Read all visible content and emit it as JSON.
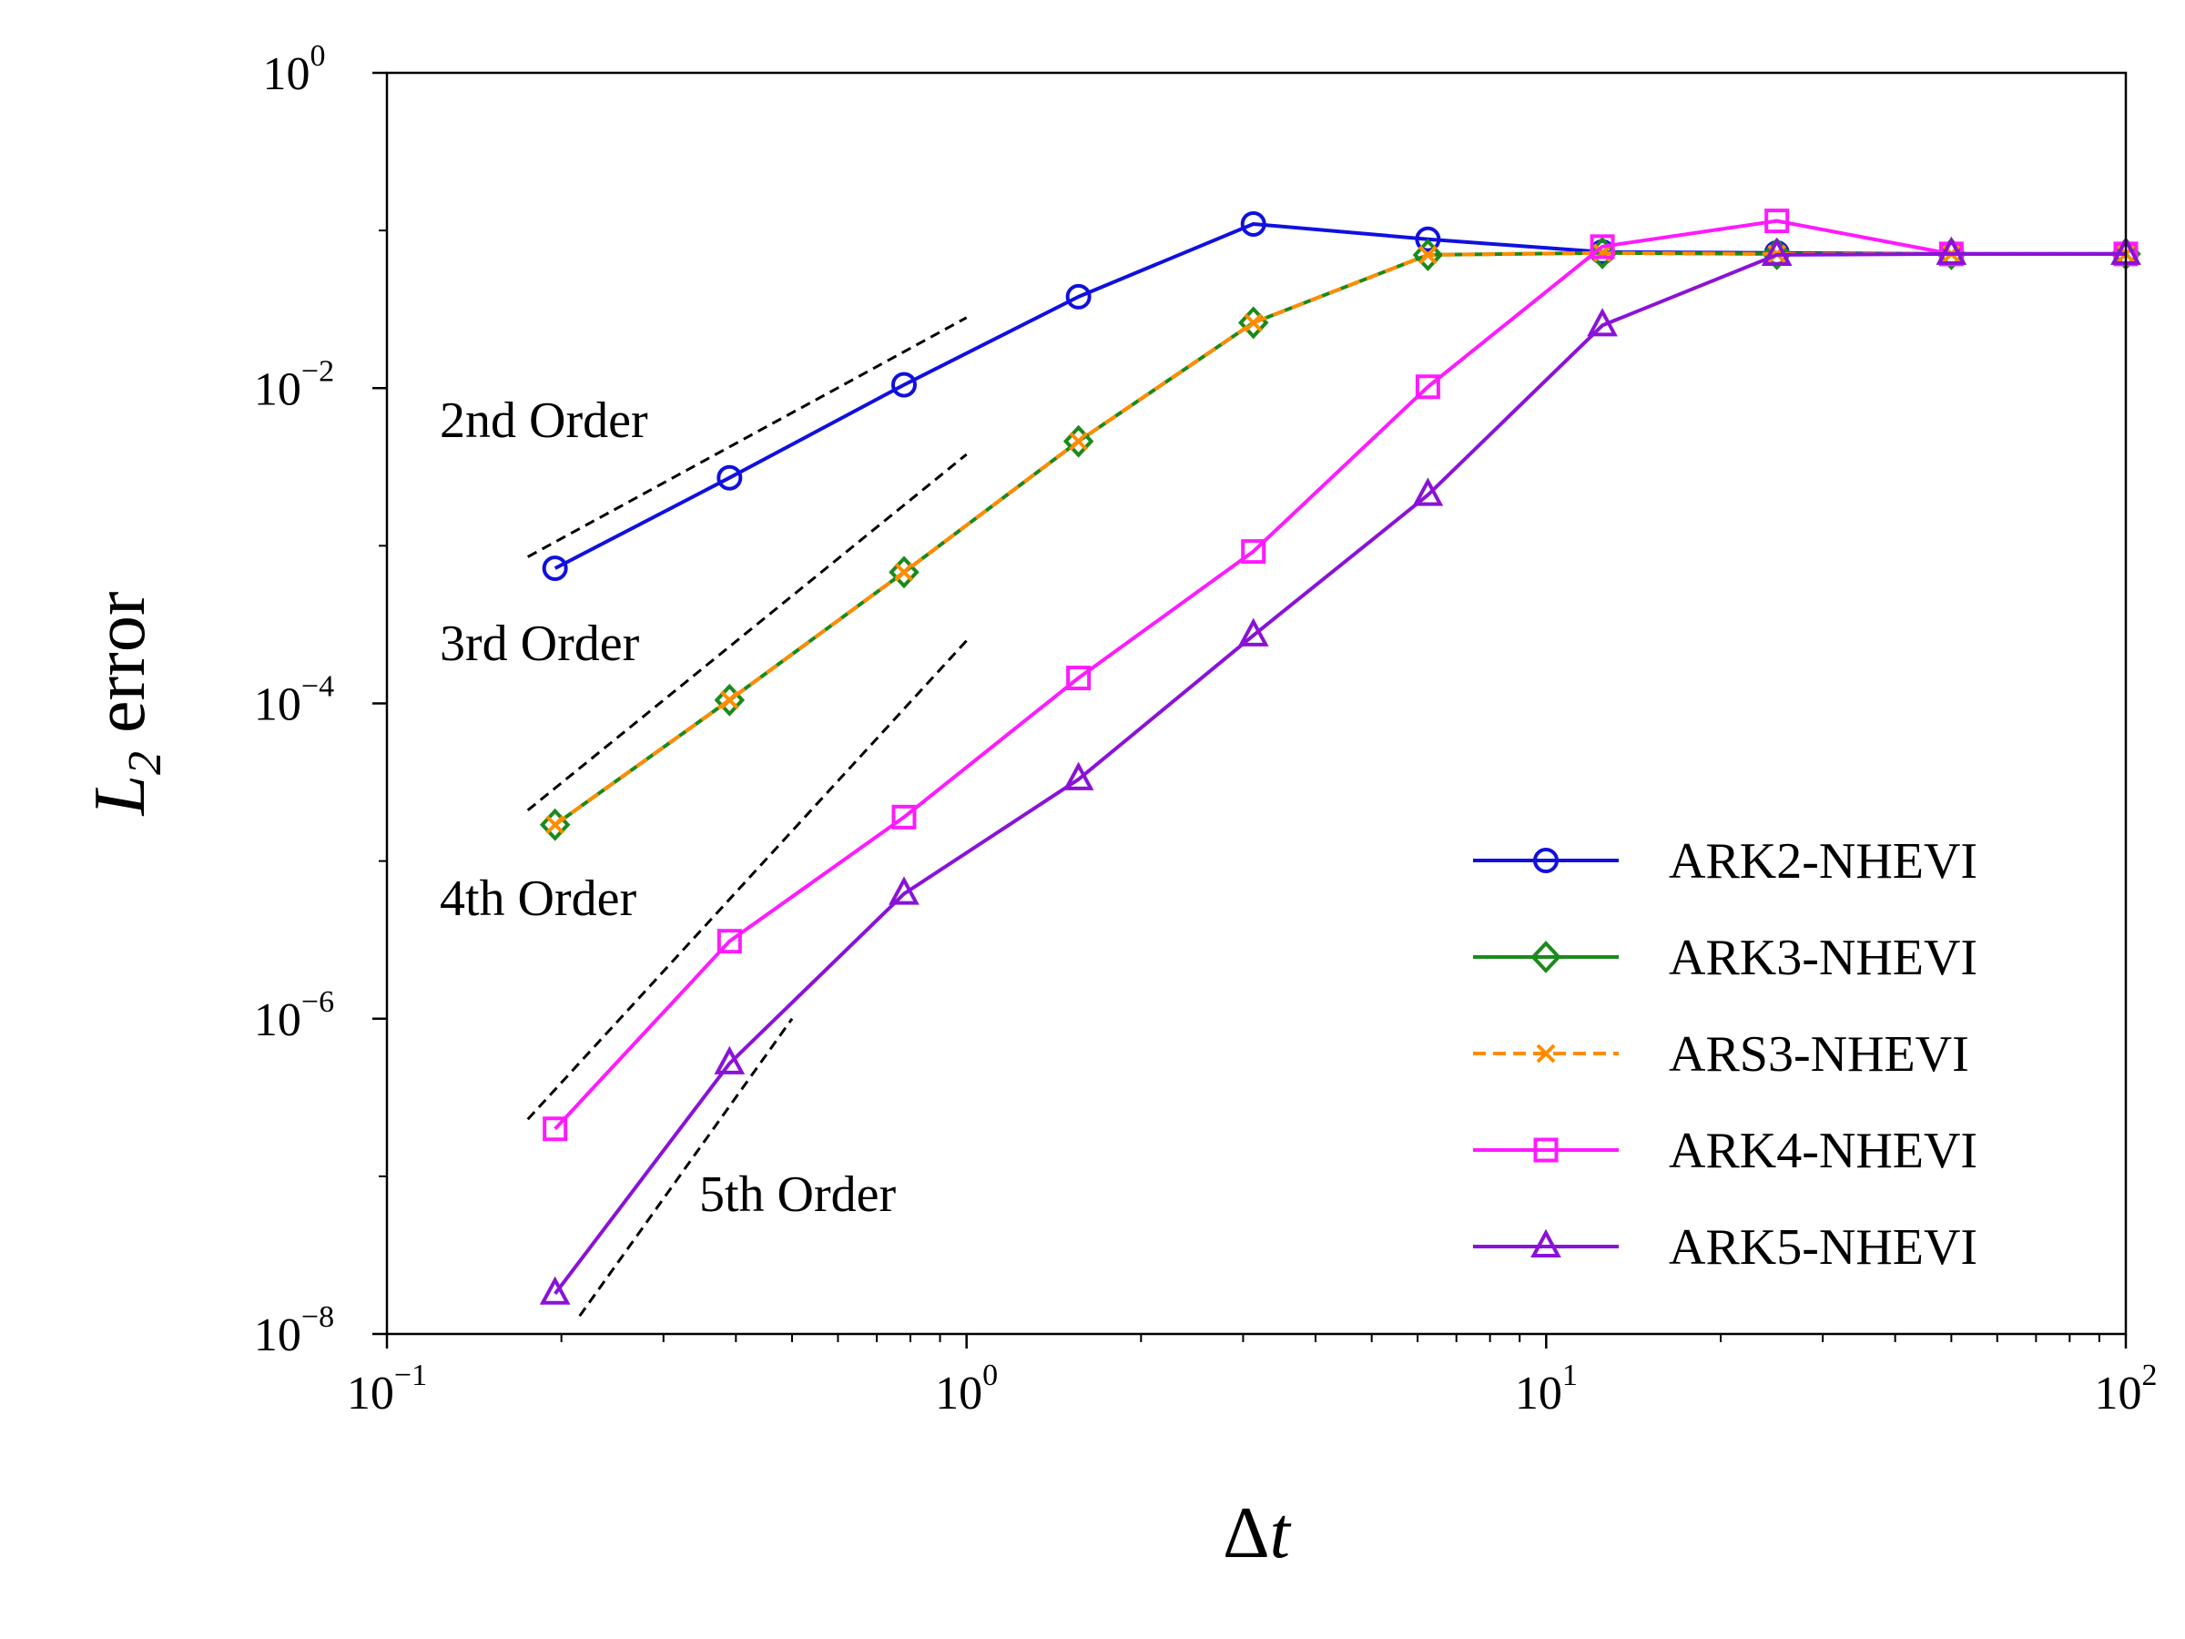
{
  "chart_data": {
    "type": "line",
    "title": "",
    "xlabel": {
      "base": "Δ",
      "var": "t"
    },
    "ylabel": {
      "var": "L",
      "sub": "2",
      "rest": " error"
    },
    "xscale": "log",
    "yscale": "log",
    "xlim": [
      0.1,
      100
    ],
    "ylim": [
      1e-08,
      1
    ],
    "x_ticks": [
      {
        "base": "10",
        "exp": "−1"
      },
      {
        "base": "10",
        "exp": "0"
      },
      {
        "base": "10",
        "exp": "1"
      },
      {
        "base": "10",
        "exp": "2"
      }
    ],
    "y_ticks": [
      {
        "base": "10",
        "exp": "0"
      },
      {
        "base": "10",
        "exp": "−2"
      },
      {
        "base": "10",
        "exp": "−4"
      },
      {
        "base": "10",
        "exp": "−6"
      },
      {
        "base": "10",
        "exp": "−8"
      }
    ],
    "legend_position": "lower-right",
    "series": [
      {
        "name": "ARK2-NHEVI",
        "color": "#1010e0",
        "marker": "circle",
        "linestyle": "solid",
        "x": [
          0.195,
          0.39,
          0.78,
          1.56,
          3.125,
          6.25,
          12.5,
          25,
          50,
          100
        ],
        "y": [
          0.00072,
          0.0027,
          0.0105,
          0.038,
          0.11,
          0.088,
          0.073,
          0.072,
          0.071,
          0.071
        ]
      },
      {
        "name": "ARK3-NHEVI",
        "color": "#1a8a1a",
        "marker": "diamond",
        "linestyle": "solid",
        "x": [
          0.195,
          0.39,
          0.78,
          1.56,
          3.125,
          6.25,
          12.5,
          25,
          50,
          100
        ],
        "y": [
          1.7e-05,
          0.000105,
          0.00068,
          0.0046,
          0.026,
          0.07,
          0.072,
          0.071,
          0.071,
          0.071
        ]
      },
      {
        "name": "ARS3-NHEVI",
        "color": "#ff8c00",
        "marker": "x",
        "linestyle": "dashed",
        "x": [
          0.195,
          0.39,
          0.78,
          1.56,
          3.125,
          6.25,
          12.5,
          25,
          50,
          100
        ],
        "y": [
          1.7e-05,
          0.000105,
          0.00068,
          0.0046,
          0.026,
          0.07,
          0.072,
          0.071,
          0.071,
          0.071
        ]
      },
      {
        "name": "ARK4-NHEVI",
        "color": "#ff1aff",
        "marker": "square",
        "linestyle": "solid",
        "x": [
          0.195,
          0.39,
          0.78,
          1.56,
          3.125,
          6.25,
          12.5,
          25,
          50,
          100
        ],
        "y": [
          2e-07,
          3.1e-06,
          1.9e-05,
          0.000145,
          0.00092,
          0.0102,
          0.079,
          0.115,
          0.071,
          0.071
        ]
      },
      {
        "name": "ARK5-NHEVI",
        "color": "#8a12d8",
        "marker": "triangle",
        "linestyle": "solid",
        "x": [
          0.195,
          0.39,
          0.78,
          1.56,
          3.125,
          6.25,
          12.5,
          25,
          50,
          100
        ],
        "y": [
          1.8e-08,
          5.2e-07,
          6.2e-06,
          3.3e-05,
          0.00027,
          0.0021,
          0.025,
          0.07,
          0.071,
          0.071
        ]
      }
    ],
    "reference_lines": [
      {
        "label": "2nd Order",
        "x": [
          0.175,
          1.0
        ],
        "y": [
          0.00085,
          0.028
        ]
      },
      {
        "label": "3rd Order",
        "x": [
          0.175,
          1.0
        ],
        "y": [
          2.1e-05,
          0.0038
        ]
      },
      {
        "label": "4th Order",
        "x": [
          0.175,
          1.0
        ],
        "y": [
          2.3e-07,
          0.00025
        ]
      },
      {
        "label": "5th Order",
        "x": [
          0.215,
          0.5
        ],
        "y": [
          1.3e-08,
          1e-06
        ]
      }
    ]
  }
}
